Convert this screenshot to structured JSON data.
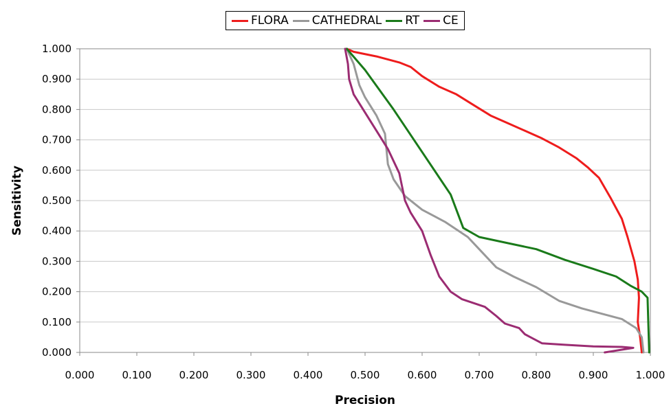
{
  "chart_data": {
    "type": "line",
    "title": "",
    "xlabel": "Precision",
    "ylabel": "Sensitivity",
    "xlim": [
      0.0,
      1.0
    ],
    "ylim": [
      0.0,
      1.0
    ],
    "xticks": [
      "0.000",
      "0.100",
      "0.200",
      "0.300",
      "0.400",
      "0.500",
      "0.600",
      "0.700",
      "0.800",
      "0.900",
      "1.000"
    ],
    "yticks": [
      "0.000",
      "0.100",
      "0.200",
      "0.300",
      "0.400",
      "0.500",
      "0.600",
      "0.700",
      "0.800",
      "0.900",
      "1.000"
    ],
    "grid": "horizontal",
    "legend_position": "top-center",
    "series": [
      {
        "name": "FLORA",
        "color": "#ee1c1c",
        "points": [
          [
            0.468,
            1.0
          ],
          [
            0.48,
            0.99
          ],
          [
            0.52,
            0.975
          ],
          [
            0.56,
            0.955
          ],
          [
            0.58,
            0.94
          ],
          [
            0.6,
            0.91
          ],
          [
            0.63,
            0.875
          ],
          [
            0.66,
            0.85
          ],
          [
            0.69,
            0.815
          ],
          [
            0.72,
            0.78
          ],
          [
            0.75,
            0.755
          ],
          [
            0.78,
            0.73
          ],
          [
            0.81,
            0.705
          ],
          [
            0.84,
            0.675
          ],
          [
            0.87,
            0.64
          ],
          [
            0.89,
            0.61
          ],
          [
            0.91,
            0.575
          ],
          [
            0.93,
            0.51
          ],
          [
            0.95,
            0.44
          ],
          [
            0.96,
            0.38
          ],
          [
            0.972,
            0.3
          ],
          [
            0.978,
            0.24
          ],
          [
            0.98,
            0.18
          ],
          [
            0.978,
            0.1
          ],
          [
            0.982,
            0.05
          ],
          [
            0.985,
            0.0
          ]
        ]
      },
      {
        "name": "CATHEDRAL",
        "color": "#999999",
        "points": [
          [
            0.468,
            1.0
          ],
          [
            0.48,
            0.95
          ],
          [
            0.49,
            0.88
          ],
          [
            0.5,
            0.84
          ],
          [
            0.52,
            0.78
          ],
          [
            0.535,
            0.72
          ],
          [
            0.54,
            0.62
          ],
          [
            0.55,
            0.57
          ],
          [
            0.57,
            0.515
          ],
          [
            0.6,
            0.47
          ],
          [
            0.64,
            0.43
          ],
          [
            0.68,
            0.38
          ],
          [
            0.7,
            0.34
          ],
          [
            0.73,
            0.28
          ],
          [
            0.76,
            0.25
          ],
          [
            0.8,
            0.215
          ],
          [
            0.84,
            0.17
          ],
          [
            0.88,
            0.145
          ],
          [
            0.92,
            0.125
          ],
          [
            0.95,
            0.11
          ],
          [
            0.975,
            0.08
          ],
          [
            0.985,
            0.05
          ],
          [
            0.988,
            0.0
          ]
        ]
      },
      {
        "name": "RT",
        "color": "#1a7a1a",
        "points": [
          [
            0.468,
            1.0
          ],
          [
            0.5,
            0.93
          ],
          [
            0.55,
            0.8
          ],
          [
            0.6,
            0.66
          ],
          [
            0.65,
            0.52
          ],
          [
            0.672,
            0.41
          ],
          [
            0.7,
            0.38
          ],
          [
            0.75,
            0.36
          ],
          [
            0.8,
            0.34
          ],
          [
            0.85,
            0.305
          ],
          [
            0.9,
            0.275
          ],
          [
            0.94,
            0.25
          ],
          [
            0.965,
            0.22
          ],
          [
            0.985,
            0.2
          ],
          [
            0.995,
            0.18
          ],
          [
            0.998,
            0.0
          ]
        ]
      },
      {
        "name": "CE",
        "color": "#9b2c72",
        "points": [
          [
            0.465,
            1.0
          ],
          [
            0.47,
            0.95
          ],
          [
            0.472,
            0.9
          ],
          [
            0.48,
            0.85
          ],
          [
            0.5,
            0.79
          ],
          [
            0.52,
            0.73
          ],
          [
            0.54,
            0.67
          ],
          [
            0.56,
            0.59
          ],
          [
            0.57,
            0.5
          ],
          [
            0.58,
            0.46
          ],
          [
            0.6,
            0.4
          ],
          [
            0.615,
            0.32
          ],
          [
            0.63,
            0.25
          ],
          [
            0.65,
            0.2
          ],
          [
            0.67,
            0.175
          ],
          [
            0.71,
            0.15
          ],
          [
            0.73,
            0.12
          ],
          [
            0.745,
            0.095
          ],
          [
            0.77,
            0.08
          ],
          [
            0.78,
            0.06
          ],
          [
            0.79,
            0.05
          ],
          [
            0.81,
            0.03
          ],
          [
            0.85,
            0.025
          ],
          [
            0.9,
            0.02
          ],
          [
            0.95,
            0.018
          ],
          [
            0.97,
            0.015
          ],
          [
            0.92,
            0.0
          ]
        ]
      }
    ]
  }
}
